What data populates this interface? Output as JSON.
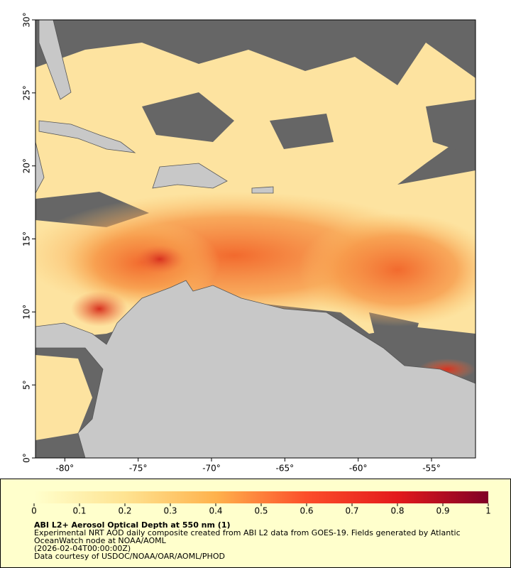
{
  "map": {
    "xlim": [
      -82,
      -52
    ],
    "ylim": [
      0,
      30
    ],
    "xticks": [
      {
        "value": -80,
        "label": "-80°"
      },
      {
        "value": -75,
        "label": "-75°"
      },
      {
        "value": -70,
        "label": "-70°"
      },
      {
        "value": -65,
        "label": "-65°"
      },
      {
        "value": -60,
        "label": "-60°"
      },
      {
        "value": -55,
        "label": "-55°"
      }
    ],
    "yticks": [
      {
        "value": 0,
        "label": "0°"
      },
      {
        "value": 5,
        "label": "5°"
      },
      {
        "value": 10,
        "label": "10°"
      },
      {
        "value": 15,
        "label": "15°"
      },
      {
        "value": 20,
        "label": "20°"
      },
      {
        "value": 25,
        "label": "25°"
      },
      {
        "value": 30,
        "label": "30°"
      }
    ]
  },
  "colorbar": {
    "range": [
      0,
      1
    ],
    "ticks": [
      0,
      0.1,
      0.2,
      0.3,
      0.4,
      0.5,
      0.6,
      0.7,
      0.8,
      0.9,
      1
    ]
  },
  "caption": {
    "title": "ABI L2+ Aerosol Optical Depth at 550 nm (1)",
    "lines": [
      "Experimental NRT AOD daily composite created from ABI L2 data from GOES-19. Fields generated by Atlantic",
      "OceanWatch node at NOAA/AOML",
      "(2026-02-04T00:00:00Z)",
      "Data courtesy of USDOC/NOAA/OAR/AOML/PHOD"
    ]
  }
}
